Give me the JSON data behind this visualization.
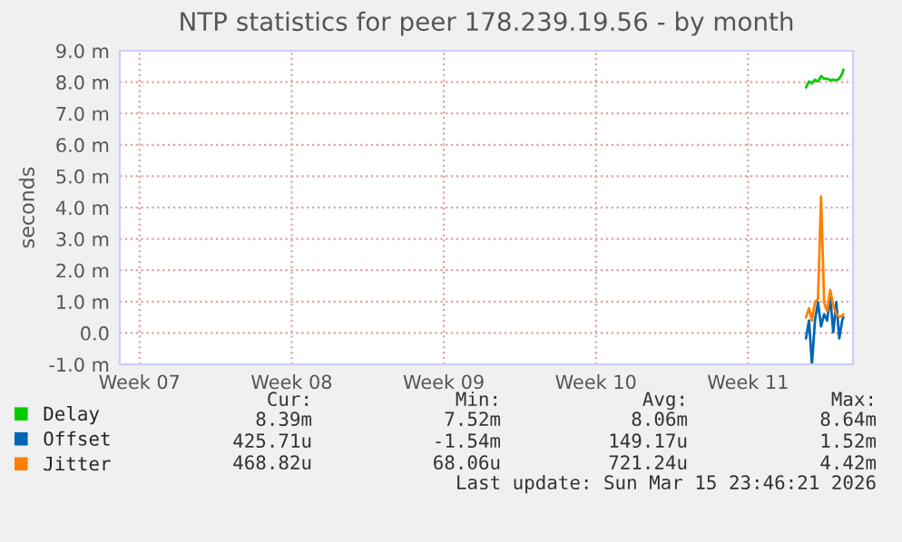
{
  "chart_data": {
    "type": "line",
    "title": "NTP statistics for peer 178.239.19.56 - by month",
    "ylabel": "seconds",
    "x": [
      "2026-03-14T06:24",
      "2026-03-14T09:46",
      "2026-03-14T12:58",
      "2026-03-14T16:19",
      "2026-03-14T19:41",
      "2026-03-14T23:02",
      "2026-03-15T02:24",
      "2026-03-15T05:46",
      "2026-03-15T09:07",
      "2026-03-15T12:29",
      "2026-03-15T15:50",
      "2026-03-15T19:12",
      "2026-03-15T22:24",
      "2026-03-15T23:44"
    ],
    "series": [
      {
        "name": "Delay",
        "color": "#00cc00",
        "values": [
          7.83,
          8.02,
          7.96,
          8.08,
          8.02,
          8.19,
          8.11,
          8.11,
          8.06,
          8.08,
          8.06,
          8.11,
          8.27,
          8.4
        ]
      },
      {
        "name": "Offset",
        "color": "#0066b3",
        "values": [
          -0.17,
          0.4,
          -1.0,
          0.4,
          0.98,
          0.21,
          0.6,
          0.4,
          1.18,
          0.02,
          0.98,
          -0.17,
          0.4,
          0.5
        ]
      },
      {
        "name": "Jitter",
        "color": "#ff8000",
        "values": [
          0.5,
          0.79,
          0.4,
          0.98,
          1.08,
          4.35,
          0.98,
          0.69,
          1.37,
          0.89,
          0.6,
          0.5,
          0.56,
          0.6
        ]
      }
    ],
    "xlim": [
      "2026-02-10T16:34",
      "2026-03-16T10:19"
    ],
    "xticks": [
      {
        "value": "2026-02-11T14:24",
        "label": "Week 07"
      },
      {
        "value": "2026-02-18T14:24",
        "label": "Week 08"
      },
      {
        "value": "2026-02-25T14:24",
        "label": "Week 09"
      },
      {
        "value": "2026-03-04T14:24",
        "label": "Week 10"
      },
      {
        "value": "2026-03-11T14:24",
        "label": "Week 11"
      }
    ],
    "ylim": [
      -1,
      9
    ],
    "yticks": [
      {
        "value": -1,
        "label": "-1.0 m"
      },
      {
        "value": 0,
        "label": "0.0"
      },
      {
        "value": 1,
        "label": "1.0 m"
      },
      {
        "value": 2,
        "label": "2.0 m"
      },
      {
        "value": 3,
        "label": "3.0 m"
      },
      {
        "value": 4,
        "label": "4.0 m"
      },
      {
        "value": 5,
        "label": "5.0 m"
      },
      {
        "value": 6,
        "label": "6.0 m"
      },
      {
        "value": 7,
        "label": "7.0 m"
      },
      {
        "value": 8,
        "label": "8.0 m"
      },
      {
        "value": 9,
        "label": "9.0 m"
      }
    ],
    "grid": true,
    "legend": "bottom left",
    "annotations": [
      "Cur:",
      "Min:",
      "Avg:",
      "Max:",
      "8.39m",
      "7.52m",
      "8.06m",
      "8.64m",
      "425.71u",
      "-1.54m",
      "149.17u",
      "1.52m",
      "468.82u",
      "68.06u",
      "721.24u",
      "4.42m",
      "Last update: Sun Mar 15 23:46:21 2026"
    ]
  }
}
